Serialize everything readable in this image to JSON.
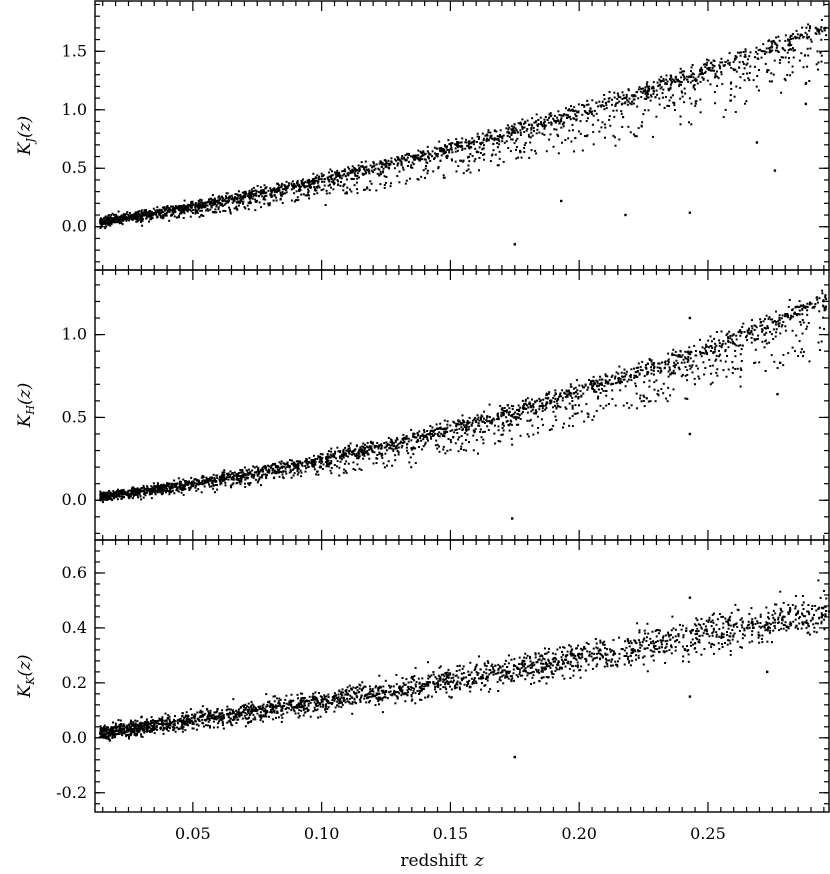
{
  "chart_data": {
    "type": "scatter",
    "xlabel": "redshift",
    "xlabel_var": "z",
    "xlim": [
      0.012,
      0.297
    ],
    "x_ticks": [
      0.05,
      0.1,
      0.15,
      0.2,
      0.25
    ],
    "x_tick_labels": [
      "0.05",
      "0.10",
      "0.15",
      "0.20",
      "0.25"
    ],
    "panels": [
      {
        "ylabel_main": "K",
        "ylabel_sub": "J",
        "ylabel_tail": "(z)",
        "ylim": [
          -0.37,
          1.93
        ],
        "y_ticks": [
          0.0,
          0.5,
          1.0,
          1.5
        ],
        "y_tick_labels": [
          "0.0",
          "0.5",
          "1.0",
          "1.5"
        ],
        "trend": {
          "a": 3.2,
          "b": 8.7,
          "scatter_down": 0.32,
          "noise": 0.025
        },
        "outliers": [
          [
            0.175,
            -0.15
          ],
          [
            0.243,
            0.12
          ],
          [
            0.276,
            0.48
          ],
          [
            0.218,
            0.1
          ],
          [
            0.193,
            0.22
          ],
          [
            0.269,
            0.72
          ],
          [
            0.288,
            1.05
          ],
          [
            0.293,
            1.67
          ]
        ],
        "n_points": 2400
      },
      {
        "ylabel_main": "K",
        "ylabel_sub": "H",
        "ylabel_tail": "(z)",
        "ylim": [
          -0.24,
          1.39
        ],
        "y_ticks": [
          0.0,
          0.5,
          1.0
        ],
        "y_tick_labels": [
          "0.0",
          "0.5",
          "1.0"
        ],
        "trend": {
          "a": 1.7,
          "b": 8.0,
          "scatter_down": 0.2,
          "noise": 0.02
        },
        "outliers": [
          [
            0.174,
            -0.11
          ],
          [
            0.243,
            0.4
          ],
          [
            0.277,
            0.64
          ],
          [
            0.278,
            0.83
          ],
          [
            0.243,
            1.1
          ],
          [
            0.272,
            1.0
          ]
        ],
        "n_points": 2400
      },
      {
        "ylabel_main": "K",
        "ylabel_sub": "K",
        "ylabel_tail": "(z)",
        "ylim": [
          -0.27,
          0.72
        ],
        "y_ticks": [
          -0.2,
          0.0,
          0.2,
          0.4,
          0.6
        ],
        "y_tick_labels": [
          "-0.2",
          "0.0",
          "0.2",
          "0.4",
          "0.6"
        ],
        "trend": {
          "a": 1.22,
          "b": 1.2,
          "scatter_down": 0.03,
          "noise": 0.02
        },
        "outliers": [
          [
            0.175,
            -0.07
          ],
          [
            0.243,
            0.15
          ],
          [
            0.243,
            0.51
          ],
          [
            0.297,
            0.46
          ],
          [
            0.273,
            0.24
          ]
        ],
        "n_points": 2400
      }
    ]
  }
}
